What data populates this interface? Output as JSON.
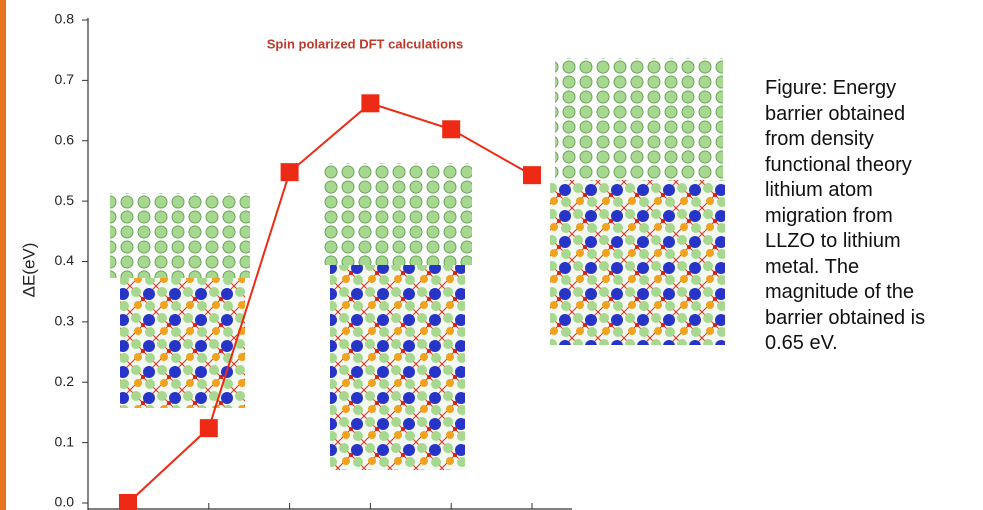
{
  "chart_data": {
    "type": "line",
    "title": "Spin polarized DFT calculations",
    "y_label": "ΔE(eV)",
    "categories": [
      null,
      null,
      null,
      null,
      null,
      null
    ],
    "values": [
      0.0,
      0.124,
      0.548,
      0.662,
      0.619,
      0.543
    ],
    "color": "#ee2a15",
    "ylim": [
      0,
      0.8
    ],
    "yticks": [
      {
        "value": 0,
        "label": "0.0"
      },
      0.1,
      0.2,
      0.3,
      0.4,
      0.5,
      0.6,
      0.7,
      0.8
    ]
  },
  "caption": [
    "Figure:  Energy",
    "barrier obtained",
    "from density",
    "functional theory",
    "lithium atom",
    "migration from",
    "LLZO to lithium",
    "metal. The",
    "magnitude of the",
    "barrier obtained is",
    "0.65 eV."
  ]
}
